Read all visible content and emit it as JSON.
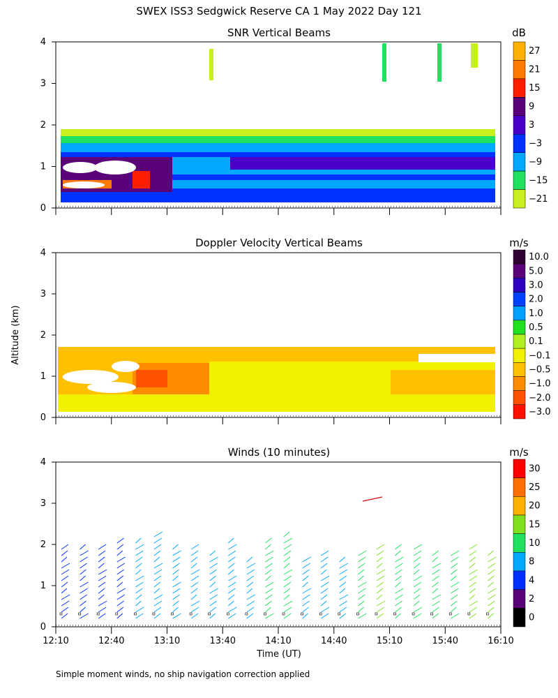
{
  "title": "SWEX ISS3 Sedgwick Reserve CA   1 May 2022 Day 121",
  "ylabel": "Altitude (km)",
  "xlabel": "Time (UT)",
  "footnote": "Simple moment winds, no ship navigation correction applied",
  "x_ticks": [
    "12:10",
    "12:40",
    "13:10",
    "13:40",
    "14:10",
    "14:40",
    "15:10",
    "15:40",
    "16:10"
  ],
  "y_ticks": [
    "0",
    "1",
    "2",
    "3",
    "4"
  ],
  "chart_data": [
    {
      "type": "heatmap",
      "title": "SNR Vertical Beams",
      "unit": "dB",
      "x_range": [
        "12:10",
        "16:10"
      ],
      "ylim": [
        0,
        4
      ],
      "colorbar_labels": [
        "27",
        "21",
        "15",
        "9",
        "3",
        "−3",
        "−9",
        "−15",
        "−21"
      ],
      "colors": [
        "#ffb000",
        "#ff7a00",
        "#ff1e00",
        "#5a0078",
        "#4a00c8",
        "#0032ff",
        "#00a8ff",
        "#22e060",
        "#c8f020"
      ],
      "layers": [
        {
          "top_km": 1.9,
          "value_db": -21
        },
        {
          "top_km": 1.65,
          "value_db": -15
        },
        {
          "top_km": 1.5,
          "value_db": -9
        },
        {
          "top_km": 1.3,
          "value_db": -3
        },
        {
          "top_km": 1.1,
          "value_db": 3
        }
      ]
    },
    {
      "type": "heatmap",
      "title": "Doppler Velocity Vertical Beams",
      "unit": "m/s",
      "x_range": [
        "12:10",
        "16:10"
      ],
      "ylim": [
        0,
        4
      ],
      "colorbar_labels": [
        "10.0",
        "5.0",
        "3.0",
        "2.0",
        "1.0",
        "0.5",
        "0.1",
        "−0.1",
        "−0.5",
        "−1.0",
        "−2.0",
        "−3.0"
      ],
      "colors": [
        "#300030",
        "#5a0078",
        "#3000c0",
        "#0040ff",
        "#00a0ff",
        "#20e020",
        "#b0f020",
        "#f0f000",
        "#ffc000",
        "#ff8c00",
        "#ff5000",
        "#ff1000"
      ],
      "layers": [
        {
          "top_km": 1.6,
          "value_ms": -0.5
        },
        {
          "top_km": 1.3,
          "value_ms": -0.1
        },
        {
          "top_km": 0.4,
          "value_ms": -0.1
        }
      ]
    },
    {
      "type": "scatter",
      "title": "Winds (10 minutes)",
      "unit": "m/s",
      "x_range": [
        "12:10",
        "16:10"
      ],
      "ylim": [
        0,
        4
      ],
      "colorbar_labels": [
        "30",
        "25",
        "20",
        "15",
        "10",
        "8",
        "4",
        "2",
        "0"
      ],
      "colors": [
        "#ff0000",
        "#ff7000",
        "#ffb000",
        "#80e020",
        "#20e060",
        "#00a8ff",
        "#0030ff",
        "#5a0078",
        "#000000"
      ],
      "profiles": [
        {
          "time": "12:10",
          "top_km": 1.9,
          "speed_ms": 4
        },
        {
          "time": "12:20",
          "top_km": 1.9,
          "speed_ms": 4
        },
        {
          "time": "12:30",
          "top_km": 2.0,
          "speed_ms": 4
        },
        {
          "time": "12:40",
          "top_km": 2.1,
          "speed_ms": 4
        },
        {
          "time": "12:50",
          "top_km": 2.1,
          "speed_ms": 8
        },
        {
          "time": "13:00",
          "top_km": 2.2,
          "speed_ms": 8
        },
        {
          "time": "13:10",
          "top_km": 2.0,
          "speed_ms": 8
        },
        {
          "time": "13:20",
          "top_km": 1.9,
          "speed_ms": 8
        },
        {
          "time": "13:30",
          "top_km": 1.8,
          "speed_ms": 8
        },
        {
          "time": "13:40",
          "top_km": 2.1,
          "speed_ms": 8
        },
        {
          "time": "13:50",
          "top_km": 1.7,
          "speed_ms": 8
        },
        {
          "time": "14:00",
          "top_km": 2.1,
          "speed_ms": 10
        },
        {
          "time": "14:10",
          "top_km": 2.3,
          "speed_ms": 10
        },
        {
          "time": "14:20",
          "top_km": 1.6,
          "speed_ms": 8
        },
        {
          "time": "14:30",
          "top_km": 1.8,
          "speed_ms": 8
        },
        {
          "time": "14:40",
          "top_km": 1.7,
          "speed_ms": 8
        },
        {
          "time": "14:50",
          "top_km": 1.8,
          "speed_ms": 10
        },
        {
          "time": "15:00",
          "top_km": 1.9,
          "speed_ms": 15
        },
        {
          "time": "15:10",
          "top_km": 1.9,
          "speed_ms": 10
        },
        {
          "time": "15:20",
          "top_km": 1.9,
          "speed_ms": 10
        },
        {
          "time": "15:30",
          "top_km": 1.8,
          "speed_ms": 10
        },
        {
          "time": "15:40",
          "top_km": 1.8,
          "speed_ms": 10
        },
        {
          "time": "15:50",
          "top_km": 1.9,
          "speed_ms": 15
        },
        {
          "time": "16:00",
          "top_km": 1.8,
          "speed_ms": 15
        }
      ]
    }
  ]
}
